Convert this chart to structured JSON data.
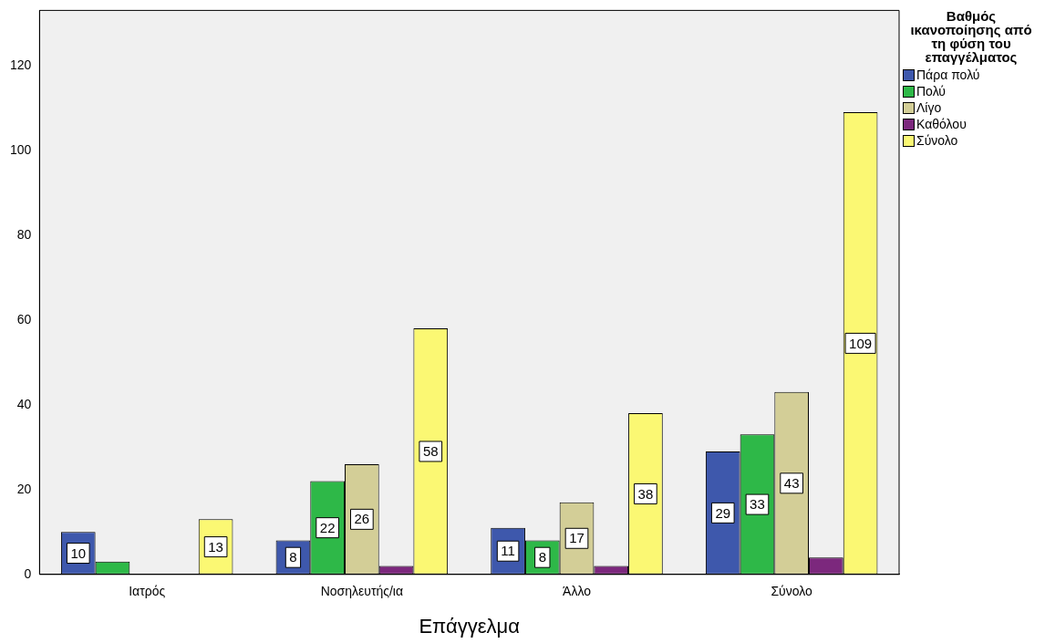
{
  "chart_data": {
    "type": "bar",
    "xlabel": "Επάγγελμα",
    "legend_title": "Βαθμός ικανοποίησης από τη φύση του επαγγέλματος",
    "legend": "right",
    "categories": [
      "Ιατρός",
      "Νοσηλευτής/ια",
      "Άλλο",
      "Σύνολο"
    ],
    "series": [
      {
        "name": "Πάρα πολύ",
        "color": "#3e58ac",
        "values": [
          10,
          8,
          11,
          29
        ],
        "value_labels": [
          "10",
          "8",
          "11",
          "29"
        ]
      },
      {
        "name": "Πολύ",
        "color": "#2eb848",
        "values": [
          3,
          22,
          8,
          33
        ],
        "value_labels": [
          null,
          "22",
          "8",
          "33"
        ]
      },
      {
        "name": "Λίγο",
        "color": "#d3ce97",
        "values": [
          0,
          26,
          17,
          43
        ],
        "value_labels": [
          null,
          "26",
          "17",
          "43"
        ]
      },
      {
        "name": "Καθόλου",
        "color": "#7c287d",
        "values": [
          0,
          2,
          2,
          4
        ],
        "value_labels": [
          null,
          null,
          null,
          null
        ]
      },
      {
        "name": "Σύνολο",
        "color": "#fbf873",
        "values": [
          13,
          58,
          38,
          109
        ],
        "value_labels": [
          "13",
          "58",
          "38",
          "109"
        ]
      }
    ],
    "ylim": [
      0,
      133
    ],
    "yticks": [
      0,
      20,
      40,
      60,
      80,
      100,
      120
    ],
    "grid": false
  }
}
